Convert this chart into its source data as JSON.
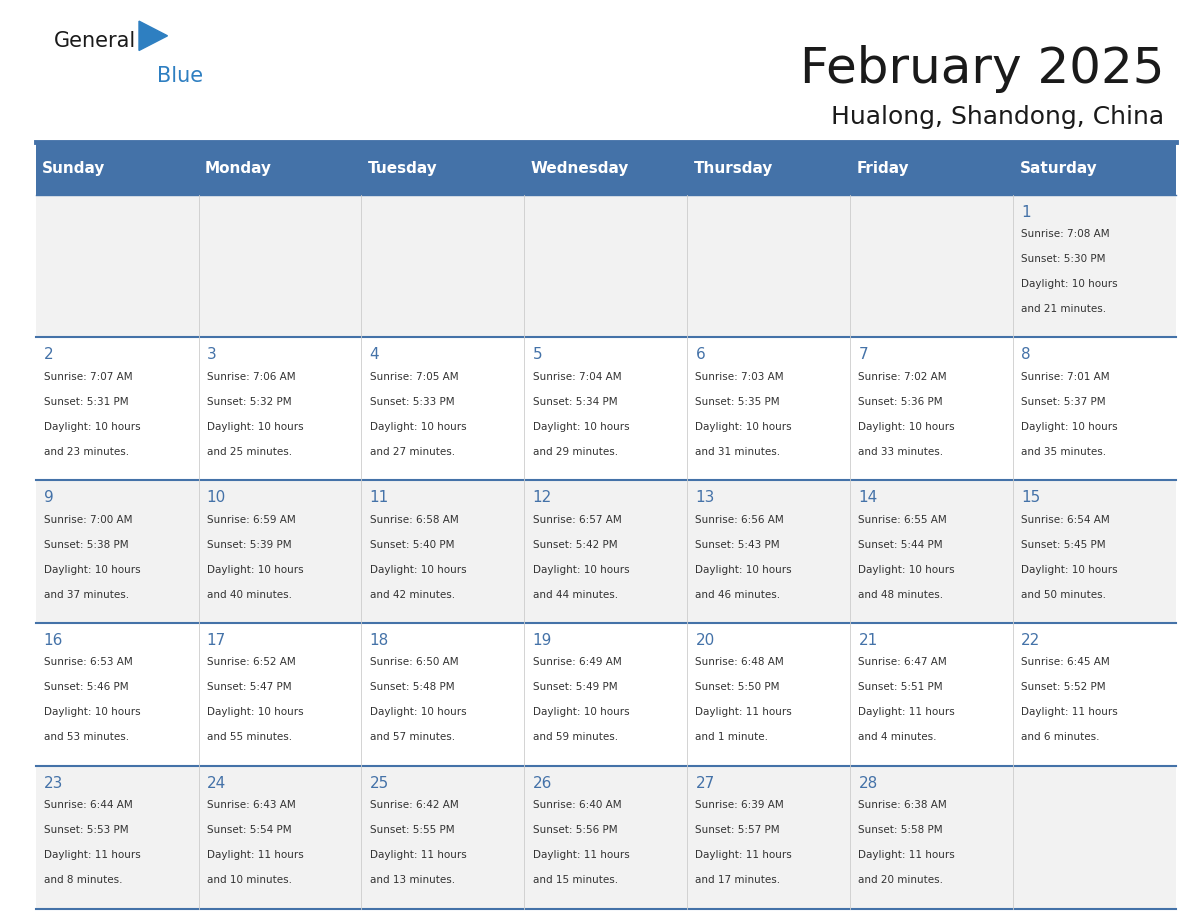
{
  "title": "February 2025",
  "subtitle": "Hualong, Shandong, China",
  "header_bg_color": "#4472a8",
  "header_text_color": "#ffffff",
  "day_names": [
    "Sunday",
    "Monday",
    "Tuesday",
    "Wednesday",
    "Thursday",
    "Friday",
    "Saturday"
  ],
  "title_color": "#1a1a1a",
  "subtitle_color": "#1a1a1a",
  "cell_bg_color": "#f2f2f2",
  "cell_alt_bg_color": "#ffffff",
  "border_color": "#4472a8",
  "text_color": "#333333",
  "logo_general_color": "#1a1a1a",
  "logo_blue_color": "#2e7fc1",
  "weeks": [
    [
      null,
      null,
      null,
      null,
      null,
      null,
      1
    ],
    [
      2,
      3,
      4,
      5,
      6,
      7,
      8
    ],
    [
      9,
      10,
      11,
      12,
      13,
      14,
      15
    ],
    [
      16,
      17,
      18,
      19,
      20,
      21,
      22
    ],
    [
      23,
      24,
      25,
      26,
      27,
      28,
      null
    ]
  ],
  "cell_data": {
    "1": {
      "sunrise": "7:08 AM",
      "sunset": "5:30 PM",
      "daylight": "10 hours and 21 minutes."
    },
    "2": {
      "sunrise": "7:07 AM",
      "sunset": "5:31 PM",
      "daylight": "10 hours and 23 minutes."
    },
    "3": {
      "sunrise": "7:06 AM",
      "sunset": "5:32 PM",
      "daylight": "10 hours and 25 minutes."
    },
    "4": {
      "sunrise": "7:05 AM",
      "sunset": "5:33 PM",
      "daylight": "10 hours and 27 minutes."
    },
    "5": {
      "sunrise": "7:04 AM",
      "sunset": "5:34 PM",
      "daylight": "10 hours and 29 minutes."
    },
    "6": {
      "sunrise": "7:03 AM",
      "sunset": "5:35 PM",
      "daylight": "10 hours and 31 minutes."
    },
    "7": {
      "sunrise": "7:02 AM",
      "sunset": "5:36 PM",
      "daylight": "10 hours and 33 minutes."
    },
    "8": {
      "sunrise": "7:01 AM",
      "sunset": "5:37 PM",
      "daylight": "10 hours and 35 minutes."
    },
    "9": {
      "sunrise": "7:00 AM",
      "sunset": "5:38 PM",
      "daylight": "10 hours and 37 minutes."
    },
    "10": {
      "sunrise": "6:59 AM",
      "sunset": "5:39 PM",
      "daylight": "10 hours and 40 minutes."
    },
    "11": {
      "sunrise": "6:58 AM",
      "sunset": "5:40 PM",
      "daylight": "10 hours and 42 minutes."
    },
    "12": {
      "sunrise": "6:57 AM",
      "sunset": "5:42 PM",
      "daylight": "10 hours and 44 minutes."
    },
    "13": {
      "sunrise": "6:56 AM",
      "sunset": "5:43 PM",
      "daylight": "10 hours and 46 minutes."
    },
    "14": {
      "sunrise": "6:55 AM",
      "sunset": "5:44 PM",
      "daylight": "10 hours and 48 minutes."
    },
    "15": {
      "sunrise": "6:54 AM",
      "sunset": "5:45 PM",
      "daylight": "10 hours and 50 minutes."
    },
    "16": {
      "sunrise": "6:53 AM",
      "sunset": "5:46 PM",
      "daylight": "10 hours and 53 minutes."
    },
    "17": {
      "sunrise": "6:52 AM",
      "sunset": "5:47 PM",
      "daylight": "10 hours and 55 minutes."
    },
    "18": {
      "sunrise": "6:50 AM",
      "sunset": "5:48 PM",
      "daylight": "10 hours and 57 minutes."
    },
    "19": {
      "sunrise": "6:49 AM",
      "sunset": "5:49 PM",
      "daylight": "10 hours and 59 minutes."
    },
    "20": {
      "sunrise": "6:48 AM",
      "sunset": "5:50 PM",
      "daylight": "11 hours and 1 minute."
    },
    "21": {
      "sunrise": "6:47 AM",
      "sunset": "5:51 PM",
      "daylight": "11 hours and 4 minutes."
    },
    "22": {
      "sunrise": "6:45 AM",
      "sunset": "5:52 PM",
      "daylight": "11 hours and 6 minutes."
    },
    "23": {
      "sunrise": "6:44 AM",
      "sunset": "5:53 PM",
      "daylight": "11 hours and 8 minutes."
    },
    "24": {
      "sunrise": "6:43 AM",
      "sunset": "5:54 PM",
      "daylight": "11 hours and 10 minutes."
    },
    "25": {
      "sunrise": "6:42 AM",
      "sunset": "5:55 PM",
      "daylight": "11 hours and 13 minutes."
    },
    "26": {
      "sunrise": "6:40 AM",
      "sunset": "5:56 PM",
      "daylight": "11 hours and 15 minutes."
    },
    "27": {
      "sunrise": "6:39 AM",
      "sunset": "5:57 PM",
      "daylight": "11 hours and 17 minutes."
    },
    "28": {
      "sunrise": "6:38 AM",
      "sunset": "5:58 PM",
      "daylight": "11 hours and 20 minutes."
    }
  }
}
